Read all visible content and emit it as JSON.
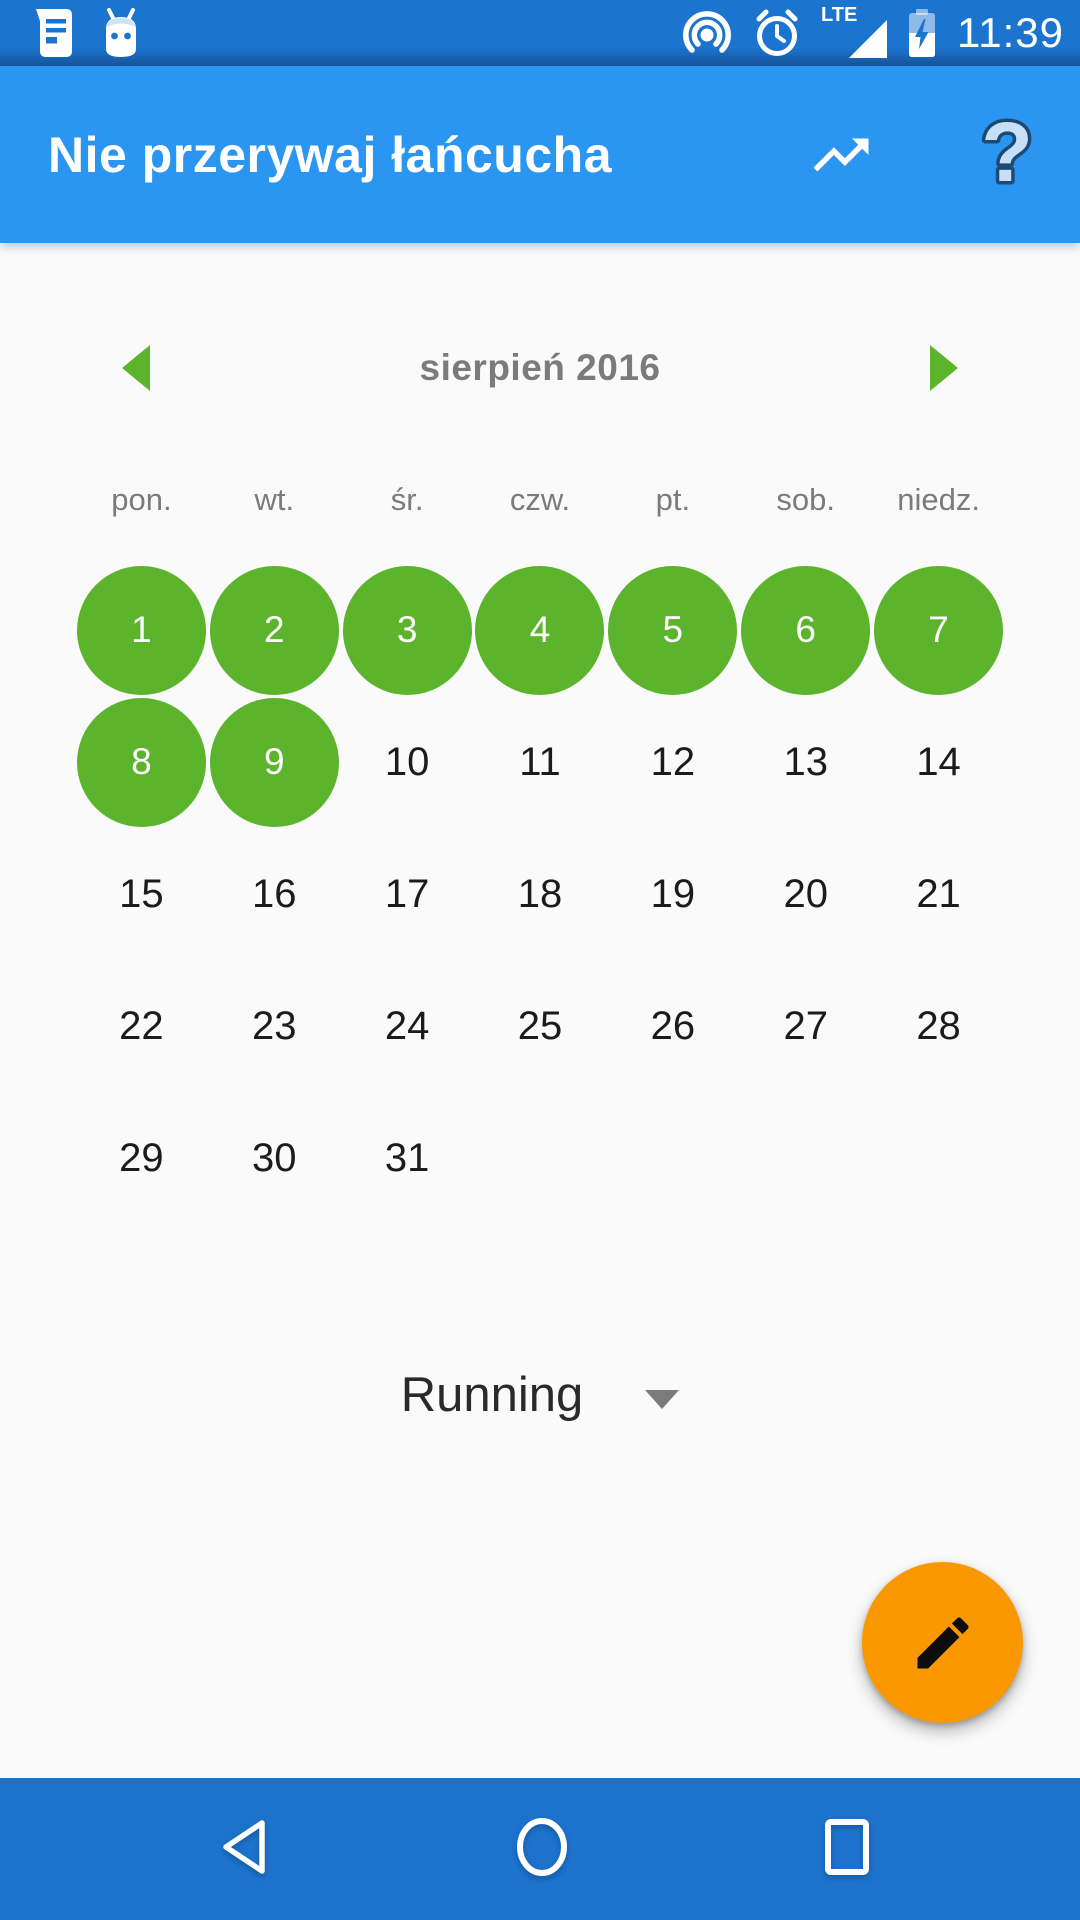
{
  "status_bar": {
    "time": "11:39",
    "lte_label": "LTE"
  },
  "app_bar": {
    "title": "Nie przerywaj łańcucha"
  },
  "calendar": {
    "month_label": "sierpień 2016",
    "weekdays": [
      "pon.",
      "wt.",
      "śr.",
      "czw.",
      "pt.",
      "sob.",
      "niedz."
    ],
    "days_in_month": 31,
    "first_day_column": 0,
    "completed_days": [
      1,
      2,
      3,
      4,
      5,
      6,
      7,
      8,
      9
    ]
  },
  "habit_selector": {
    "selected_habit": "Running"
  },
  "colors": {
    "app_bar_blue": "#2a96f1",
    "system_bar_blue": "#1b74ce",
    "nav_bar_blue": "#1d72cc",
    "completed_green": "#5cb42c",
    "fab_orange": "#f99800",
    "background": "#fafafa",
    "text_dark": "#1b1b1b",
    "text_gray": "#7b7b7b"
  }
}
